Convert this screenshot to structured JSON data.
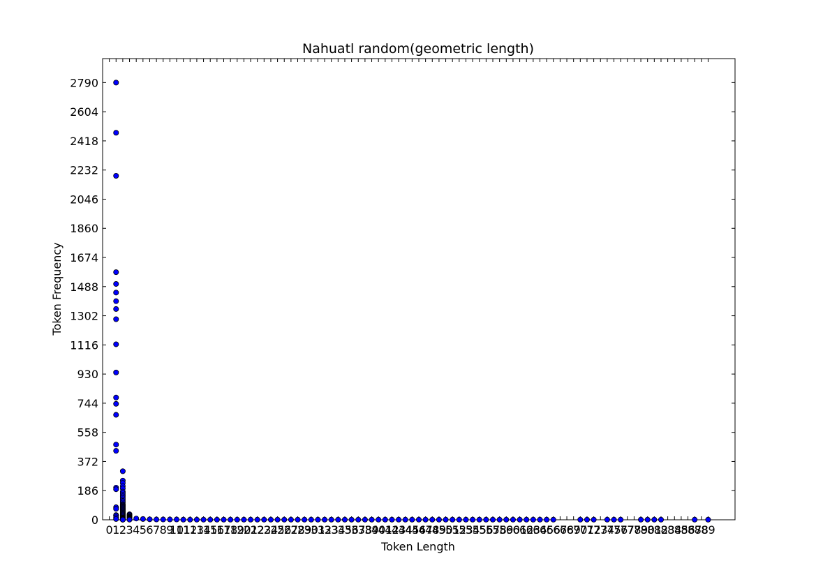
{
  "chart_data": {
    "type": "scatter",
    "title": "Nahuatl random(geometric length)",
    "xlabel": "Token Length",
    "ylabel": "Token Frequency",
    "xlim": [
      -1,
      93
    ],
    "ylim": [
      0,
      2943
    ],
    "grid": false,
    "marker_color": "#0000ff",
    "marker_edge": "#000000",
    "y_ticks": [
      0,
      186,
      372,
      558,
      744,
      930,
      1116,
      1302,
      1488,
      1674,
      1860,
      2046,
      2232,
      2418,
      2604,
      2790
    ],
    "x_ticks": [
      0,
      1,
      2,
      3,
      4,
      5,
      6,
      7,
      8,
      9,
      10,
      11,
      12,
      13,
      14,
      15,
      16,
      17,
      18,
      19,
      20,
      21,
      22,
      23,
      24,
      25,
      26,
      27,
      28,
      29,
      30,
      31,
      32,
      33,
      34,
      35,
      36,
      37,
      38,
      39,
      40,
      41,
      42,
      43,
      44,
      45,
      46,
      47,
      48,
      49,
      50,
      51,
      52,
      53,
      54,
      55,
      56,
      57,
      58,
      59,
      60,
      61,
      62,
      63,
      64,
      65,
      66,
      67,
      68,
      69,
      70,
      71,
      72,
      73,
      74,
      75,
      76,
      77,
      78,
      79,
      80,
      81,
      82,
      83,
      84,
      85,
      86,
      87,
      88,
      89
    ],
    "x_tick_labels": [
      "0",
      "1",
      "2",
      "3",
      "4",
      "5",
      "6",
      "7",
      "8",
      "9",
      "10",
      "11",
      "12",
      "13",
      "14",
      "15",
      "16",
      "17",
      "18",
      "19",
      "20",
      "21",
      "22",
      "23",
      "24",
      "25",
      "26",
      "27",
      "28",
      "29",
      "30",
      "31",
      "32",
      "33",
      "34",
      "35",
      "36",
      "37",
      "38",
      "39",
      "40",
      "41",
      "42",
      "43",
      "44",
      "45",
      "46",
      "47",
      "48",
      "49",
      "50",
      "51",
      "52",
      "53",
      "54",
      "55",
      "56",
      "57",
      "58",
      "59",
      "60",
      "61",
      "62",
      "63",
      "64",
      "65",
      "66",
      "67",
      "68",
      "69",
      "70",
      "71",
      "72",
      "73",
      "74",
      "75",
      "76",
      "77",
      "78",
      "79",
      "80",
      "81",
      "82",
      "83",
      "84",
      "85",
      "86",
      "87",
      "88",
      "89"
    ],
    "points": {
      "x": [
        1,
        1,
        1,
        1,
        1,
        1,
        1,
        1,
        1,
        1,
        1,
        1,
        1,
        1,
        1,
        1,
        1,
        1,
        1,
        1,
        1,
        1,
        1,
        1,
        2,
        2,
        2,
        2,
        2,
        2,
        2,
        2,
        2,
        2,
        2,
        2,
        2,
        2,
        2,
        2,
        2,
        2,
        2,
        2,
        2,
        2,
        2,
        2,
        2,
        2,
        2,
        2,
        2,
        2,
        2,
        2,
        2,
        2,
        2,
        2,
        2,
        2,
        2,
        2,
        2,
        2,
        3,
        3,
        3,
        3,
        3,
        3,
        3,
        3,
        3,
        3,
        3,
        3,
        4,
        5,
        6,
        7,
        8,
        9,
        10,
        11,
        12,
        13,
        14,
        15,
        16,
        17,
        18,
        19,
        20,
        21,
        22,
        23,
        24,
        25,
        26,
        27,
        28,
        29,
        30,
        31,
        32,
        33,
        34,
        35,
        36,
        37,
        38,
        39,
        40,
        41,
        42,
        43,
        44,
        45,
        46,
        47,
        48,
        49,
        50,
        51,
        52,
        53,
        54,
        55,
        56,
        57,
        58,
        59,
        60,
        61,
        62,
        63,
        64,
        65,
        66,
        70,
        71,
        72,
        74,
        75,
        76,
        79,
        80,
        81,
        82,
        87,
        89
      ],
      "y": [
        2790,
        2470,
        2195,
        1580,
        1505,
        1450,
        1395,
        1345,
        1280,
        1120,
        940,
        780,
        740,
        670,
        480,
        440,
        205,
        195,
        80,
        70,
        30,
        25,
        15,
        5,
        310,
        250,
        235,
        215,
        200,
        180,
        170,
        160,
        150,
        140,
        130,
        120,
        110,
        100,
        95,
        90,
        85,
        80,
        75,
        70,
        65,
        60,
        55,
        50,
        45,
        40,
        35,
        30,
        25,
        20,
        15,
        12,
        10,
        8,
        6,
        5,
        4,
        3,
        2,
        1,
        1,
        1,
        35,
        30,
        25,
        20,
        18,
        15,
        12,
        10,
        8,
        5,
        3,
        1,
        8,
        5,
        3,
        2,
        2,
        2,
        2,
        1,
        1,
        1,
        1,
        1,
        1,
        1,
        1,
        1,
        1,
        1,
        1,
        1,
        1,
        1,
        1,
        1,
        1,
        1,
        1,
        1,
        1,
        1,
        1,
        1,
        1,
        1,
        1,
        1,
        1,
        1,
        1,
        1,
        1,
        1,
        1,
        1,
        1,
        1,
        1,
        1,
        1,
        1,
        1,
        1,
        1,
        1,
        1,
        1,
        1,
        1,
        1,
        1,
        1,
        1,
        1,
        1,
        1,
        1,
        1,
        1,
        1,
        1,
        1,
        1,
        1,
        1,
        1
      ]
    }
  }
}
